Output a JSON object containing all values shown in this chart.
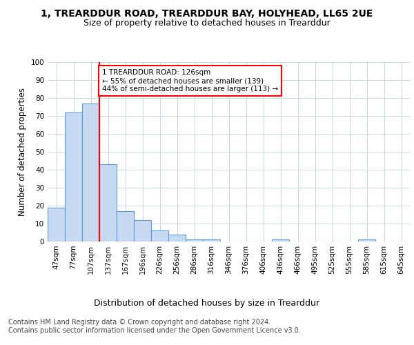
{
  "title1": "1, TREARDDUR ROAD, TREARDDUR BAY, HOLYHEAD, LL65 2UE",
  "title2": "Size of property relative to detached houses in Trearddur",
  "xlabel": "Distribution of detached houses by size in Trearddur",
  "ylabel": "Number of detached properties",
  "categories": [
    "47sqm",
    "77sqm",
    "107sqm",
    "137sqm",
    "167sqm",
    "196sqm",
    "226sqm",
    "256sqm",
    "286sqm",
    "316sqm",
    "346sqm",
    "376sqm",
    "406sqm",
    "436sqm",
    "466sqm",
    "495sqm",
    "525sqm",
    "555sqm",
    "585sqm",
    "615sqm",
    "645sqm"
  ],
  "bar_values": [
    19,
    72,
    77,
    43,
    17,
    12,
    6,
    4,
    1,
    1,
    0,
    0,
    0,
    1,
    0,
    0,
    0,
    0,
    1,
    0,
    0
  ],
  "bar_color": "#c6d9f0",
  "bar_edge_color": "#5b9bd5",
  "vline_pos": 2.5,
  "vline_color": "red",
  "annotation_box_text": "1 TREARDDUR ROAD: 126sqm\n← 55% of detached houses are smaller (139)\n44% of semi-detached houses are larger (113) →",
  "annotation_box_color": "red",
  "ylim": [
    0,
    100
  ],
  "yticks": [
    0,
    10,
    20,
    30,
    40,
    50,
    60,
    70,
    80,
    90,
    100
  ],
  "grid_color": "#c8d4e8",
  "footnote": "Contains HM Land Registry data © Crown copyright and database right 2024.\nContains public sector information licensed under the Open Government Licence v3.0.",
  "title1_fontsize": 10,
  "title2_fontsize": 9,
  "xlabel_fontsize": 9,
  "ylabel_fontsize": 8.5,
  "tick_fontsize": 7.5,
  "annot_fontsize": 7.5,
  "footnote_fontsize": 7,
  "bg_color": "#ffffff"
}
